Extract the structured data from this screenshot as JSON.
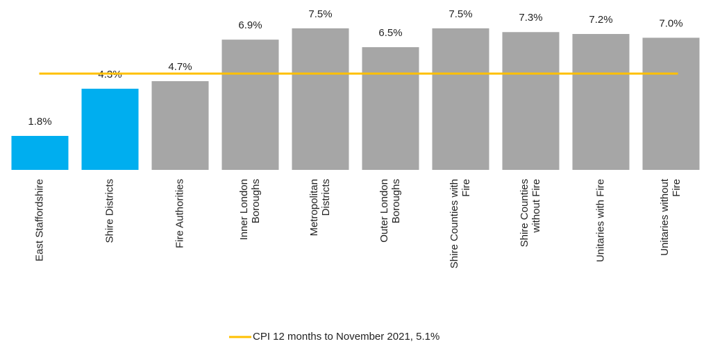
{
  "chart_data": {
    "type": "bar",
    "categories": [
      "East Staffordshire",
      "Shire Districts",
      "Fire Authorities",
      "Inner London\nBoroughs",
      "Metropolitan\nDistricts",
      "Outer London\nBoroughs",
      "Shire Counties with\nFire",
      "Shire Counties\nwithout Fire",
      "Unitaries with Fire",
      "Unitaries without\nFire"
    ],
    "values": [
      1.8,
      4.3,
      4.7,
      6.9,
      7.5,
      6.5,
      7.5,
      7.3,
      7.2,
      7.0
    ],
    "value_labels": [
      "1.8%",
      "4.3%",
      "4.7%",
      "6.9%",
      "7.5%",
      "6.5%",
      "7.5%",
      "7.3%",
      "7.2%",
      "7.0%"
    ],
    "colors": [
      "#00aeef",
      "#00aeef",
      "#a6a6a6",
      "#a6a6a6",
      "#a6a6a6",
      "#a6a6a6",
      "#a6a6a6",
      "#a6a6a6",
      "#a6a6a6",
      "#a6a6a6"
    ],
    "ylim": [
      0,
      9
    ],
    "reference_line": {
      "name": "CPI 12 months to November 2021, 5.1%",
      "value": 5.1,
      "color": "#ffc000"
    }
  }
}
